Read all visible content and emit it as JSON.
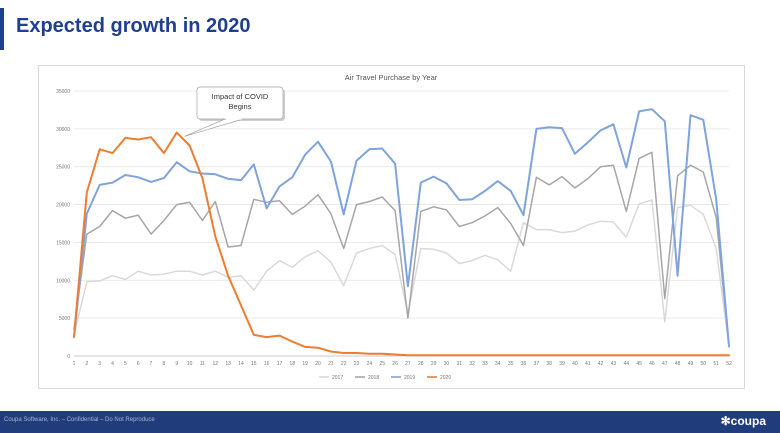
{
  "slide": {
    "title": "Expected growth in 2020",
    "footer_text": "Coupa Software, Inc. – Confidential – Do Not Reproduce",
    "logo_text": "coupa",
    "brand_color": "#213c7a",
    "title_color": "#1f3f8f"
  },
  "chart_data": {
    "type": "line",
    "title": "Air Travel Purchase by Year",
    "xlabel": "",
    "ylabel": "",
    "ylim": [
      0,
      35000
    ],
    "yticks": [
      0,
      5000,
      10000,
      15000,
      20000,
      25000,
      30000,
      35000
    ],
    "grid": true,
    "legend_position": "bottom",
    "x": [
      1,
      2,
      3,
      4,
      5,
      6,
      7,
      8,
      9,
      10,
      11,
      12,
      13,
      14,
      15,
      16,
      17,
      18,
      19,
      20,
      21,
      22,
      23,
      24,
      25,
      26,
      27,
      28,
      29,
      30,
      31,
      32,
      33,
      34,
      35,
      36,
      37,
      38,
      39,
      40,
      41,
      42,
      43,
      44,
      45,
      46,
      47,
      48,
      49,
      50,
      51,
      52
    ],
    "series": [
      {
        "name": "2017",
        "color": "#d9d9d9",
        "values": [
          2800,
          9800,
          9900,
          10600,
          10100,
          11200,
          10700,
          10800,
          11200,
          11200,
          10700,
          11200,
          10400,
          10600,
          8700,
          11200,
          12600,
          11700,
          13100,
          13900,
          12400,
          9300,
          13600,
          14200,
          14600,
          13400,
          5600,
          14200,
          14100,
          13600,
          12200,
          12600,
          13300,
          12700,
          11200,
          17600,
          16700,
          16700,
          16300,
          16500,
          17300,
          17800,
          17700,
          15700,
          20100,
          20600,
          4500,
          19600,
          19900,
          18700,
          14200,
          1200
        ]
      },
      {
        "name": "2018",
        "color": "#a6a6a6",
        "values": [
          3500,
          16100,
          17100,
          19200,
          18200,
          18600,
          16100,
          17900,
          20000,
          20300,
          17900,
          20400,
          14400,
          14600,
          20700,
          20300,
          20500,
          18700,
          19800,
          21300,
          18800,
          14200,
          20000,
          20400,
          21000,
          19200,
          5000,
          19100,
          19700,
          19300,
          17100,
          17600,
          18500,
          19600,
          17500,
          14600,
          23600,
          22600,
          23700,
          22200,
          23400,
          25000,
          25200,
          19100,
          26100,
          26900,
          7600,
          23800,
          25200,
          24300,
          18300,
          1200
        ]
      },
      {
        "name": "2019",
        "color": "#7fa3dc",
        "values": [
          2500,
          18800,
          22600,
          22900,
          23900,
          23600,
          23000,
          23500,
          25600,
          24400,
          24100,
          24000,
          23400,
          23200,
          25300,
          19500,
          22400,
          23600,
          26600,
          28300,
          25700,
          18700,
          25800,
          27300,
          27400,
          25400,
          9200,
          22900,
          23700,
          22800,
          20600,
          20700,
          21800,
          23100,
          21800,
          18600,
          30000,
          30200,
          30100,
          26700,
          28200,
          29800,
          30600,
          24900,
          32300,
          32600,
          31000,
          10600,
          31800,
          31200,
          20700,
          1300
        ]
      },
      {
        "name": "2020",
        "color": "#ed7d31",
        "values": [
          2500,
          21600,
          27300,
          26800,
          28800,
          28600,
          28900,
          26800,
          29500,
          27800,
          23500,
          15800,
          10600,
          6700,
          2800,
          2500,
          2700,
          1900,
          1200,
          1100,
          600,
          400,
          400,
          300,
          300,
          200,
          100,
          100,
          100,
          100,
          100,
          100,
          100,
          100,
          100,
          100,
          100,
          100,
          100,
          100,
          100,
          100,
          100,
          100,
          100,
          100,
          100,
          100,
          100,
          100,
          100,
          100
        ]
      }
    ],
    "annotations": [
      {
        "text_lines": [
          "Impact of COVID",
          "Begins"
        ],
        "points_to": {
          "x": 9.6,
          "y": 29000
        }
      }
    ]
  }
}
